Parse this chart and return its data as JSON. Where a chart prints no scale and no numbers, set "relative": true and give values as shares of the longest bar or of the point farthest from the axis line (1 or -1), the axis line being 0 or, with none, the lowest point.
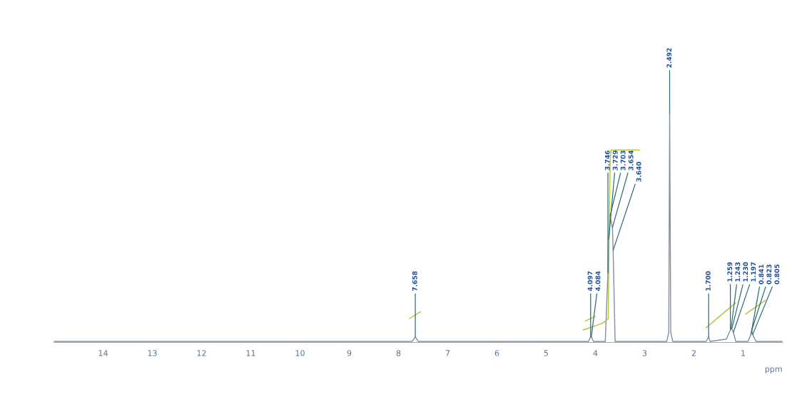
{
  "chart_data": {
    "type": "line",
    "relative": true,
    "xlabel": "ppm",
    "xlim": [
      15,
      0.2
    ],
    "xticks": [
      14,
      13,
      12,
      11,
      10,
      9,
      8,
      7,
      6,
      5,
      4,
      3,
      2,
      1
    ],
    "grid": false,
    "marker": "none",
    "line_style": "solid",
    "series": [
      {
        "color": "#7f8f9f",
        "x": [
          15,
          7.72,
          7.658,
          7.6,
          4.14,
          4.097,
          4.084,
          4.04,
          3.8,
          3.746,
          3.729,
          3.703,
          3.654,
          3.64,
          3.6,
          2.55,
          2.51,
          2.492,
          2.47,
          2.43,
          1.75,
          1.7,
          1.67,
          1.34,
          1.259,
          1.243,
          1.23,
          1.197,
          1.15,
          0.9,
          0.841,
          0.823,
          0.805,
          0.74,
          0.2
        ],
        "values": [
          0,
          0,
          0.02,
          0,
          0,
          0.02,
          0.02,
          0,
          0,
          0.3,
          0.45,
          0.55,
          0.5,
          0.4,
          0,
          0,
          0.04,
          1,
          0.04,
          0,
          0,
          0.02,
          0,
          0.01,
          0.05,
          0.06,
          0.055,
          0.04,
          0,
          0,
          0.03,
          0.05,
          0.03,
          0,
          0
        ]
      },
      {
        "color": "#b5c23a",
        "x": [
          4.25,
          3.85,
          3.74,
          3.72,
          3.7,
          3.68,
          3.1
        ],
        "values": [
          0.05,
          0.08,
          0.1,
          0.5,
          0.8,
          0.84,
          0.84
        ]
      },
      {
        "color": "#b5c23a",
        "x": [
          7.78,
          7.55
        ],
        "values": [
          0.1,
          0.13
        ]
      },
      {
        "color": "#b5c23a",
        "x": [
          4.2,
          4.0
        ],
        "values": [
          0.09,
          0.11
        ]
      },
      {
        "color": "#b5c23a",
        "x": [
          1.75,
          1.15
        ],
        "values": [
          0.06,
          0.17
        ]
      },
      {
        "color": "#b5c23a",
        "x": [
          0.95,
          0.55
        ],
        "values": [
          0.12,
          0.18
        ]
      }
    ],
    "annotations": [
      {
        "text": "7.658",
        "x": 7.658,
        "y": 0.02
      },
      {
        "text": "4.097",
        "x": 4.097,
        "y": 0.02
      },
      {
        "text": "4.084",
        "x": 4.084,
        "y": 0.02
      },
      {
        "text": "3.746",
        "x": 3.746,
        "y": 0.3
      },
      {
        "text": "3.729",
        "x": 3.729,
        "y": 0.45
      },
      {
        "text": "3.703",
        "x": 3.703,
        "y": 0.55
      },
      {
        "text": "3.654",
        "x": 3.654,
        "y": 0.5
      },
      {
        "text": "3.640",
        "x": 3.64,
        "y": 0.4
      },
      {
        "text": "2.492",
        "x": 2.492,
        "y": 1
      },
      {
        "text": "1.700",
        "x": 1.7,
        "y": 0.02
      },
      {
        "text": "1.259",
        "x": 1.259,
        "y": 0.05
      },
      {
        "text": "1.243",
        "x": 1.243,
        "y": 0.06
      },
      {
        "text": "1.230",
        "x": 1.23,
        "y": 0.055
      },
      {
        "text": "1.197",
        "x": 1.197,
        "y": 0.04
      },
      {
        "text": "0.841",
        "x": 0.841,
        "y": 0.03
      },
      {
        "text": "0.823",
        "x": 0.823,
        "y": 0.05
      },
      {
        "text": "0.805",
        "x": 0.805,
        "y": 0.03
      }
    ]
  }
}
